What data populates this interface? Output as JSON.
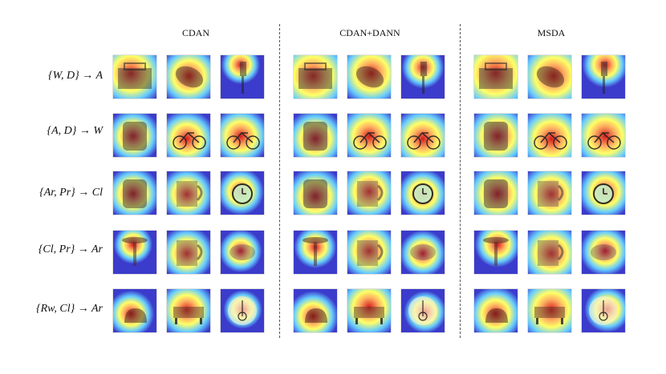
{
  "columns": [
    {
      "label": "CDAN"
    },
    {
      "label": "CDAN+DANN"
    },
    {
      "label": "MSDA"
    }
  ],
  "rows": [
    {
      "label": "{W, D} → A",
      "objects": [
        "bag-icon",
        "mouse-icon",
        "lamp-icon"
      ]
    },
    {
      "label": "{A, D} → W",
      "objects": [
        "backpack-icon",
        "bike-icon",
        "bike-icon"
      ]
    },
    {
      "label": "{Ar, Pr} → Cl",
      "objects": [
        "backpack-icon",
        "mug-icon",
        "alarm-clock-icon"
      ]
    },
    {
      "label": "{Cl, Pr} → Ar",
      "objects": [
        "table-icon",
        "mug-icon",
        "blob-icon"
      ]
    },
    {
      "label": "{Rw, Cl} → Ar",
      "objects": [
        "kettle-icon",
        "sofa-icon",
        "bike-plate-icon"
      ]
    }
  ],
  "colors": {
    "heat_hot": "#d7191c",
    "heat_warm": "#fdae61",
    "heat_mid": "#ffff66",
    "heat_cool": "#66ccff",
    "heat_cold": "#3b3bcc",
    "divider": "#555555"
  }
}
